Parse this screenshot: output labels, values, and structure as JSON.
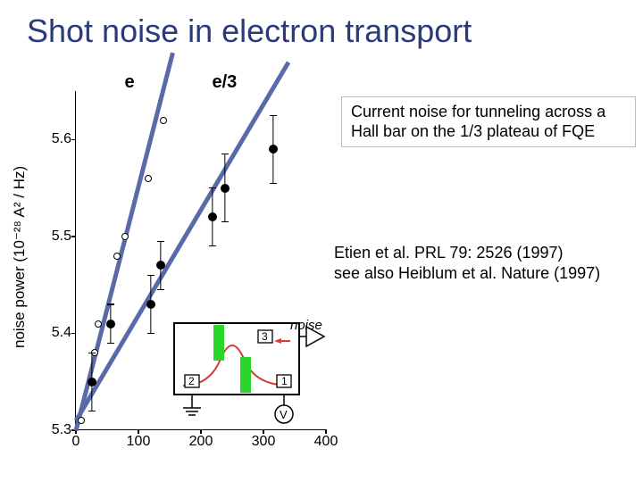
{
  "title": "Shot noise in electron transport",
  "caption": "Current noise for tunneling across a Hall bar on the 1/3 plateau of FQE",
  "citation_line1": "Etien et al. PRL 79: 2526 (1997)",
  "citation_line2": "see also Heiblum et al. Nature (1997)",
  "chart": {
    "ylabel": "noise power (10⁻²⁸ A² / Hz)",
    "ylim": [
      5.3,
      5.65
    ],
    "xlim": [
      0,
      400
    ],
    "yticks": [
      5.3,
      5.4,
      5.5,
      5.6
    ],
    "xticks": [
      0,
      100,
      200,
      300,
      400
    ],
    "series_e": {
      "label": "e",
      "label_pos": {
        "x": 95,
        "y": 5.66
      },
      "open_circles": [
        {
          "x": 8,
          "y": 5.31
        },
        {
          "x": 30,
          "y": 5.38
        },
        {
          "x": 35,
          "y": 5.41
        },
        {
          "x": 65,
          "y": 5.48
        },
        {
          "x": 78,
          "y": 5.5
        },
        {
          "x": 115,
          "y": 5.56
        },
        {
          "x": 140,
          "y": 5.62
        }
      ],
      "line": {
        "x1": 0,
        "y1": 5.3,
        "x2": 155,
        "y2": 5.69
      }
    },
    "series_e3": {
      "label": "e/3",
      "label_pos": {
        "x": 235,
        "y": 5.66
      },
      "filled_points": [
        {
          "x": 25,
          "y": 5.35,
          "err": 0.03
        },
        {
          "x": 55,
          "y": 5.41,
          "err": 0.02
        },
        {
          "x": 120,
          "y": 5.43,
          "err": 0.03
        },
        {
          "x": 135,
          "y": 5.47,
          "err": 0.025
        },
        {
          "x": 218,
          "y": 5.52,
          "err": 0.03
        },
        {
          "x": 238,
          "y": 5.55,
          "err": 0.035
        },
        {
          "x": 315,
          "y": 5.59,
          "err": 0.035
        }
      ],
      "line": {
        "x1": 0,
        "y1": 5.31,
        "x2": 340,
        "y2": 5.68
      }
    },
    "colors": {
      "fit_line": "#5a6aa8",
      "axis": "#000000",
      "background": "#ffffff"
    }
  },
  "circuit": {
    "noise_label": "noise",
    "terminals": [
      "1",
      "2",
      "3"
    ],
    "V_label": "V",
    "gate_color": "#2bd62b",
    "edge_color": "#d63a3a"
  }
}
